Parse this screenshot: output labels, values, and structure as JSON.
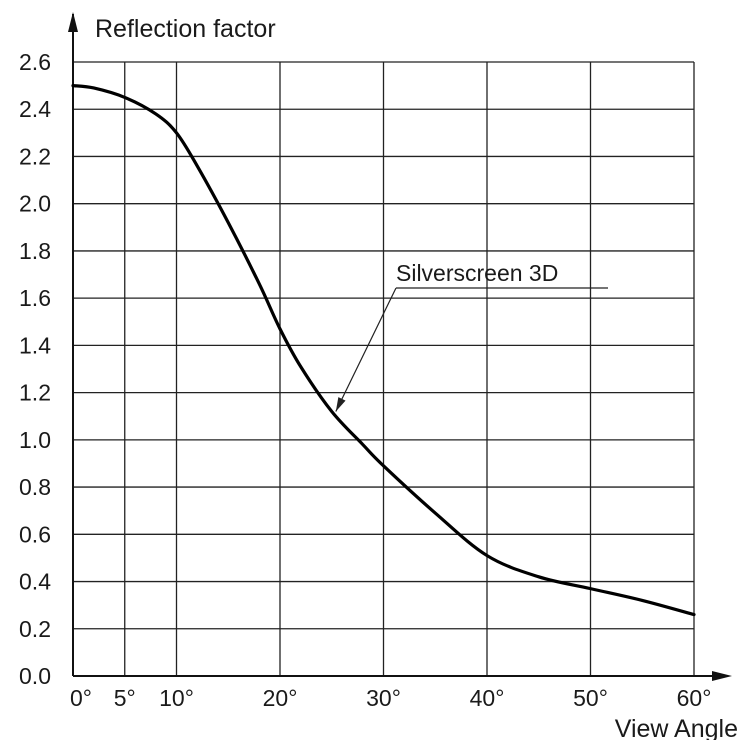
{
  "chart_data": {
    "type": "line",
    "ylabel": "Reflection factor",
    "xlabel": "View Angle",
    "xlim": [
      0,
      60
    ],
    "ylim": [
      0.0,
      2.6
    ],
    "grid": true,
    "x_ticks": [
      0,
      5,
      10,
      20,
      30,
      40,
      50,
      60
    ],
    "x_tick_labels": [
      "0°",
      "5°",
      "10°",
      "20°",
      "30°",
      "40°",
      "50°",
      "60°"
    ],
    "y_ticks": [
      0.0,
      0.2,
      0.4,
      0.6,
      0.8,
      1.0,
      1.2,
      1.4,
      1.6,
      1.8,
      2.0,
      2.2,
      2.4,
      2.6
    ],
    "y_tick_labels": [
      "0.0",
      "0.2",
      "0.4",
      "0.6",
      "0.8",
      "1.0",
      "1.2",
      "1.4",
      "1.6",
      "1.8",
      "2.0",
      "2.2",
      "2.4",
      "2.6"
    ],
    "series": [
      {
        "name": "Silverscreen 3D",
        "x": [
          0,
          2,
          5,
          8,
          10,
          12,
          15,
          18,
          20,
          22,
          25,
          28,
          30,
          35,
          40,
          45,
          50,
          55,
          60
        ],
        "y": [
          2.5,
          2.49,
          2.45,
          2.38,
          2.3,
          2.16,
          1.92,
          1.66,
          1.47,
          1.31,
          1.12,
          0.98,
          0.89,
          0.69,
          0.51,
          0.42,
          0.37,
          0.32,
          0.26
        ]
      }
    ],
    "annotations": [
      {
        "text": "Silverscreen 3D",
        "points_to": {
          "x": 25.2,
          "y": 1.12
        }
      }
    ]
  }
}
